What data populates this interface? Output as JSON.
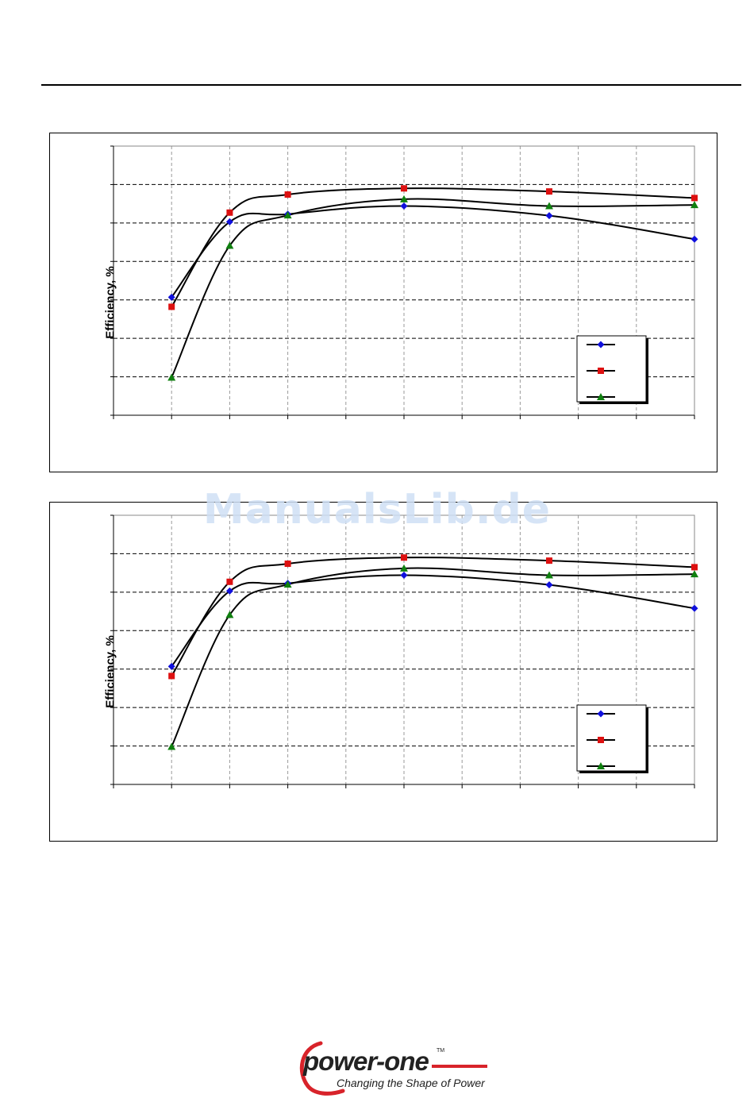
{
  "page": {
    "watermark": "ManualsLib.de",
    "logo": {
      "word": "power-one",
      "tm": "TM",
      "tagline": "Changing the Shape of Power"
    }
  },
  "chart_data": [
    {
      "type": "line",
      "ylabel": "Efficiency, %",
      "x": [
        0,
        1,
        2,
        3,
        4,
        5,
        6,
        7,
        8,
        9,
        10
      ],
      "xlim": [
        0,
        10
      ],
      "ylim": [
        0,
        7
      ],
      "grid": true,
      "legend_position": "bottom-right",
      "series": [
        {
          "color": "#1010dd",
          "marker": "diamond",
          "points": [
            [
              1,
              3.07
            ],
            [
              2,
              5.03
            ],
            [
              3,
              5.23
            ],
            [
              5,
              5.44
            ],
            [
              7.5,
              5.19
            ],
            [
              10,
              4.58
            ]
          ]
        },
        {
          "color": "#dd1010",
          "marker": "square",
          "points": [
            [
              1,
              2.82
            ],
            [
              2,
              5.27
            ],
            [
              3,
              5.74
            ],
            [
              5,
              5.9
            ],
            [
              7.5,
              5.82
            ],
            [
              10,
              5.65
            ]
          ]
        },
        {
          "color": "#108010",
          "marker": "triangle",
          "points": [
            [
              1,
              0.98
            ],
            [
              2,
              4.41
            ],
            [
              3,
              5.2
            ],
            [
              5,
              5.62
            ],
            [
              7.5,
              5.44
            ],
            [
              10,
              5.47
            ]
          ]
        }
      ]
    },
    {
      "type": "line",
      "ylabel": "Efficiency, %",
      "x": [
        0,
        1,
        2,
        3,
        4,
        5,
        6,
        7,
        8,
        9,
        10
      ],
      "xlim": [
        0,
        10
      ],
      "ylim": [
        0,
        7
      ],
      "grid": true,
      "legend_position": "bottom-right",
      "series": [
        {
          "color": "#1010dd",
          "marker": "diamond",
          "points": [
            [
              1,
              3.07
            ],
            [
              2,
              5.03
            ],
            [
              3,
              5.23
            ],
            [
              5,
              5.44
            ],
            [
              7.5,
              5.19
            ],
            [
              10,
              4.58
            ]
          ]
        },
        {
          "color": "#dd1010",
          "marker": "square",
          "points": [
            [
              1,
              2.82
            ],
            [
              2,
              5.27
            ],
            [
              3,
              5.74
            ],
            [
              5,
              5.9
            ],
            [
              7.5,
              5.82
            ],
            [
              10,
              5.65
            ]
          ]
        },
        {
          "color": "#108010",
          "marker": "triangle",
          "points": [
            [
              1,
              0.98
            ],
            [
              2,
              4.41
            ],
            [
              3,
              5.2
            ],
            [
              5,
              5.62
            ],
            [
              7.5,
              5.44
            ],
            [
              10,
              5.47
            ]
          ]
        }
      ]
    }
  ]
}
